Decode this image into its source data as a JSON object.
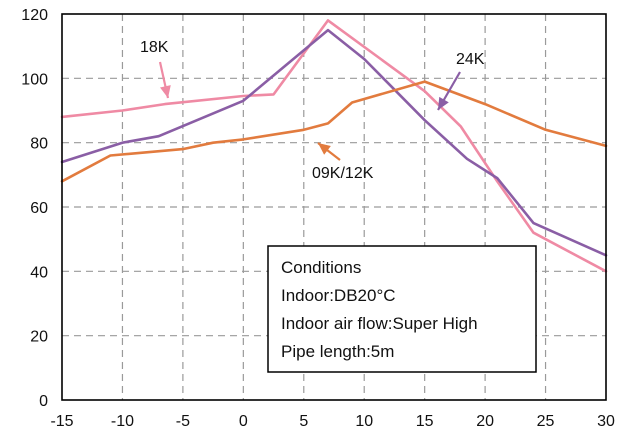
{
  "chart_data": {
    "type": "line",
    "xlim": [
      -15,
      30
    ],
    "ylim": [
      0,
      120
    ],
    "x_ticks": [
      "-15",
      "-10",
      "-5",
      "0",
      "5",
      "10",
      "15",
      "20",
      "25",
      "30"
    ],
    "y_ticks": [
      "0",
      "20",
      "40",
      "60",
      "80",
      "100",
      "120"
    ],
    "grid": true,
    "series": [
      {
        "name": "18K",
        "color": "#ef8aa4",
        "points": [
          [
            -15,
            88
          ],
          [
            -10,
            90
          ],
          [
            -6.5,
            92
          ],
          [
            0,
            94.5
          ],
          [
            2.5,
            95
          ],
          [
            7,
            118
          ],
          [
            15,
            96
          ],
          [
            18,
            85
          ],
          [
            21,
            68
          ],
          [
            24,
            52
          ],
          [
            30,
            40
          ]
        ]
      },
      {
        "name": "24K",
        "color": "#8a5ea5",
        "points": [
          [
            -15,
            74
          ],
          [
            -10,
            80
          ],
          [
            -7,
            82
          ],
          [
            0,
            93
          ],
          [
            7,
            115
          ],
          [
            10,
            106
          ],
          [
            15,
            87
          ],
          [
            18.5,
            75
          ],
          [
            21,
            69
          ],
          [
            24,
            55
          ],
          [
            30,
            45
          ]
        ]
      },
      {
        "name": "09K/12K",
        "color": "#e27b3e",
        "points": [
          [
            -15,
            68
          ],
          [
            -11,
            76
          ],
          [
            -8,
            77
          ],
          [
            -5,
            78
          ],
          [
            -2.5,
            80
          ],
          [
            0,
            81
          ],
          [
            5,
            84
          ],
          [
            7,
            86
          ],
          [
            9,
            92.5
          ],
          [
            15,
            99
          ],
          [
            20,
            92
          ],
          [
            25,
            84
          ],
          [
            30,
            79
          ]
        ]
      }
    ],
    "annotations": {
      "label_18k": "18K",
      "label_24k": "24K",
      "label_0912k": "09K/12K"
    },
    "conditions_box": {
      "title": "Conditions",
      "indoor": "Indoor:DB20°C",
      "airflow": "Indoor air flow:Super High",
      "pipe": "Pipe length:5m"
    }
  }
}
